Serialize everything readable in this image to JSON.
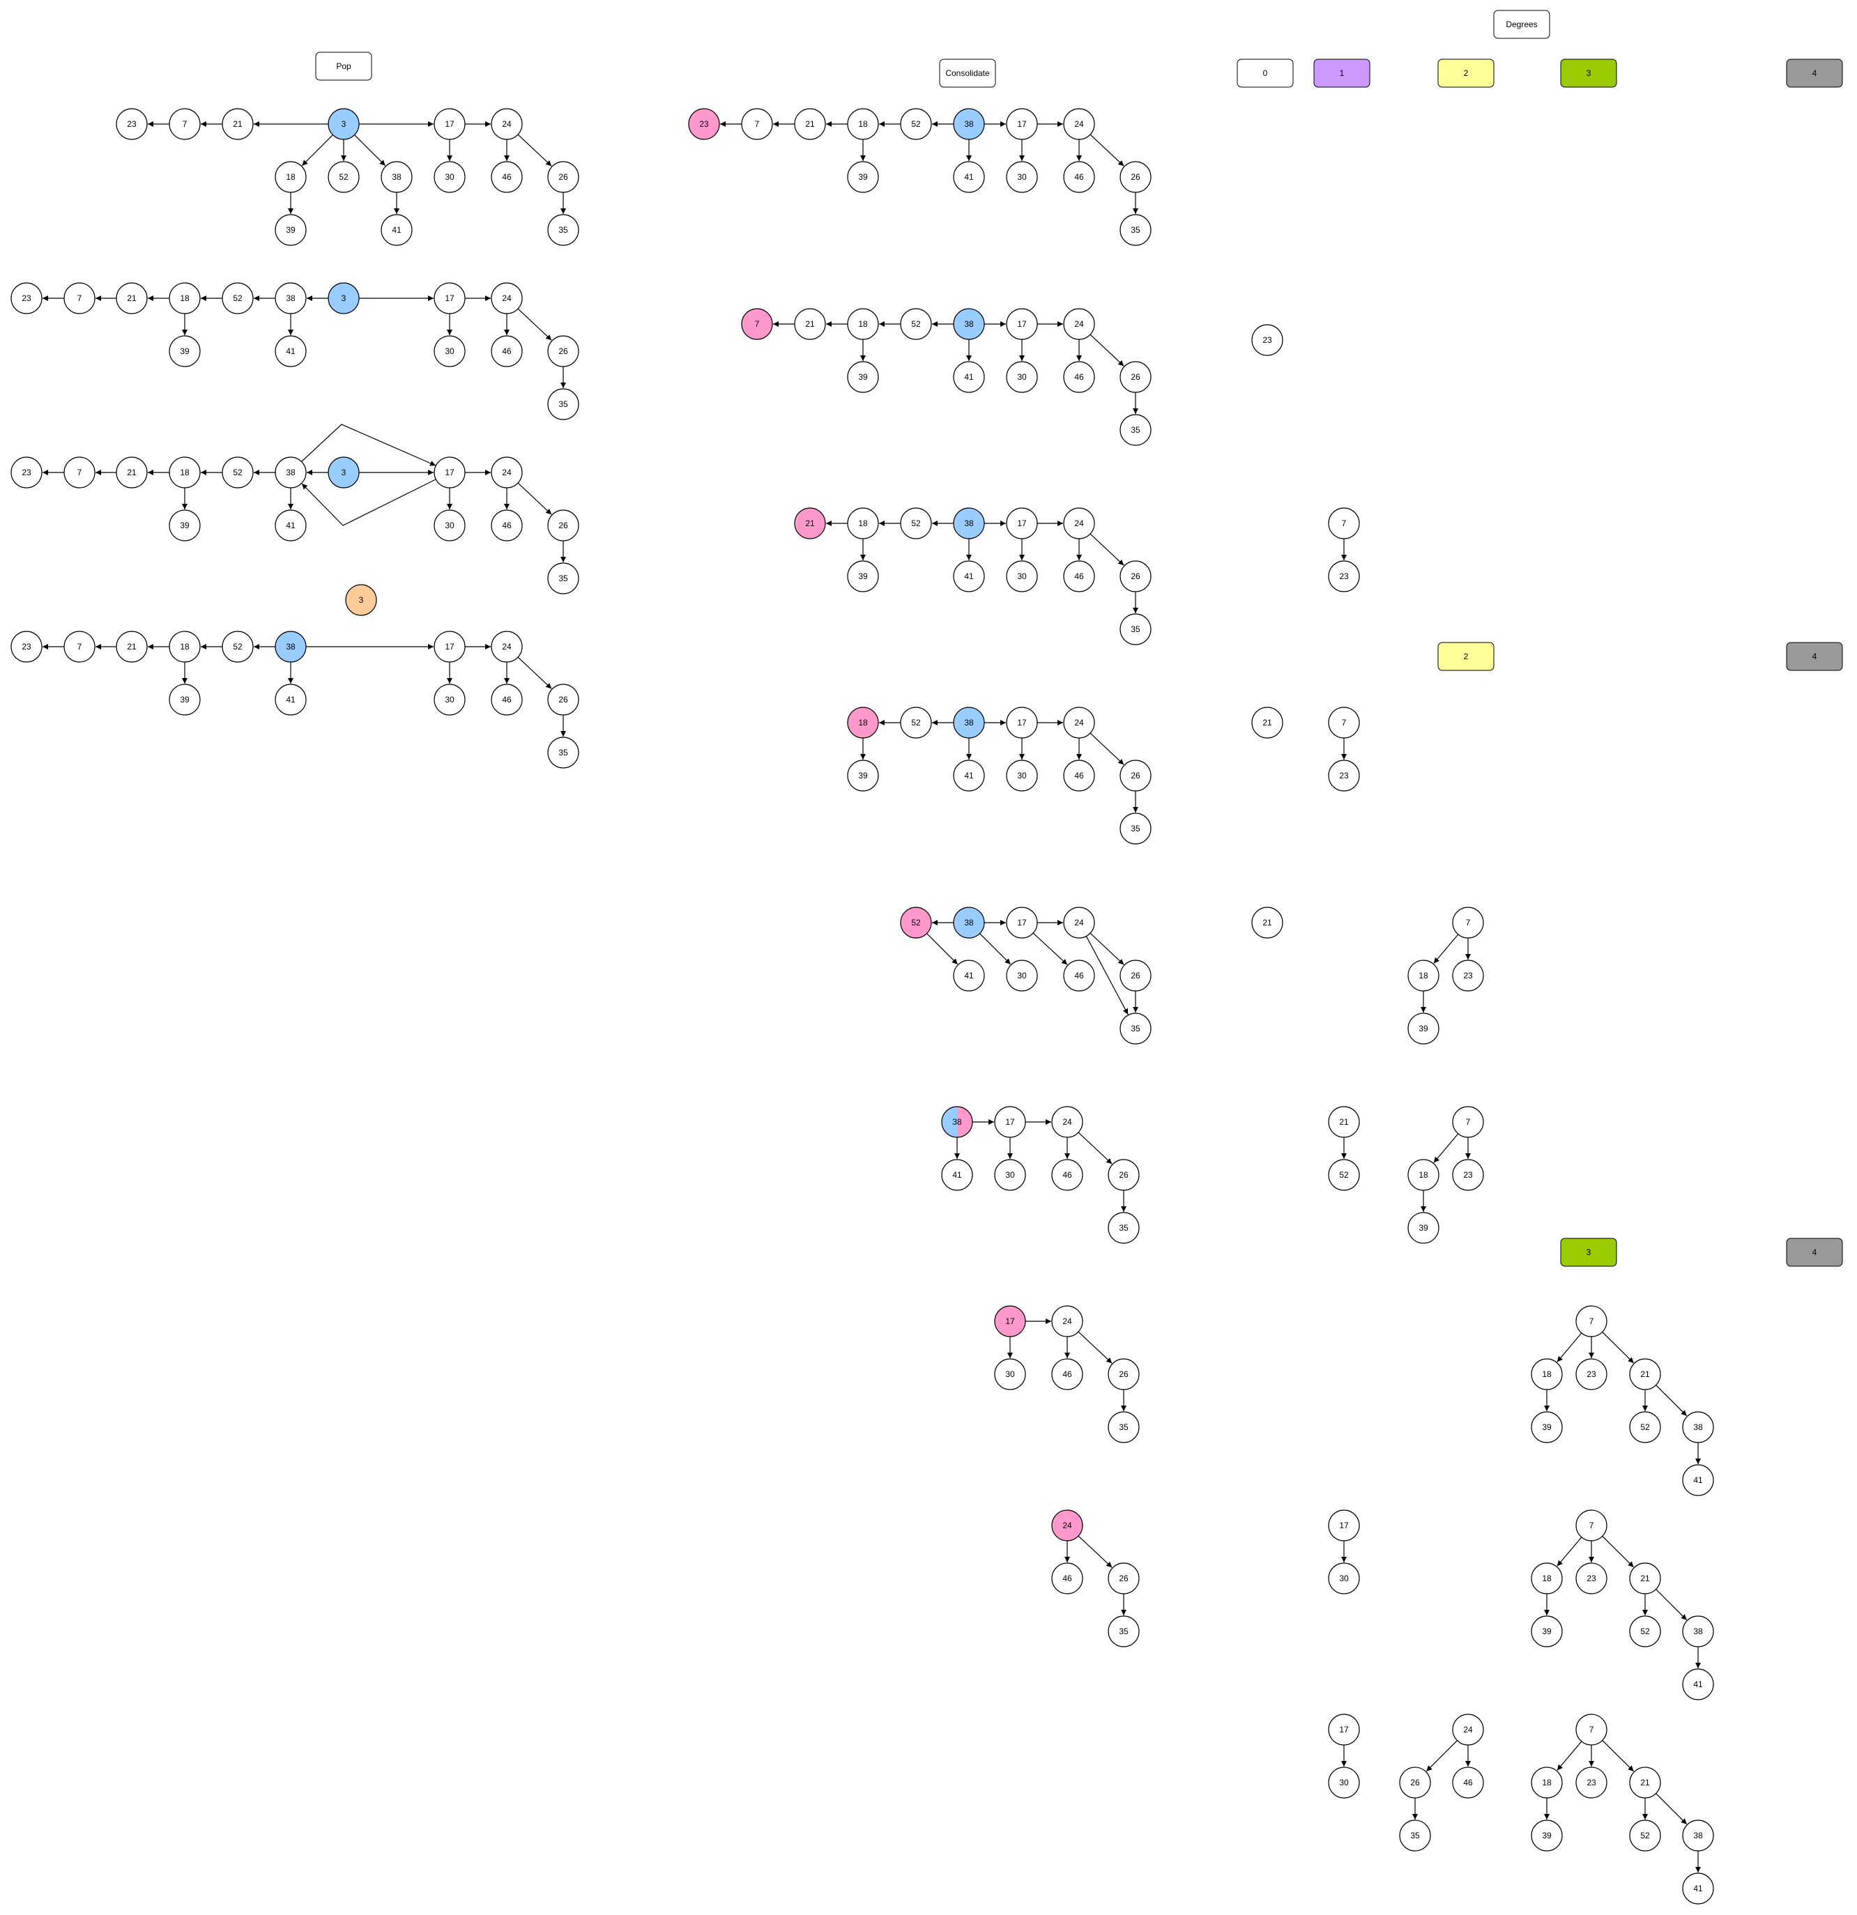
{
  "headings": {
    "pop": "Pop",
    "consolidate": "Consolidate",
    "degrees": "Degrees"
  },
  "degree_labels": [
    "0",
    "1",
    "2",
    "3",
    "4"
  ],
  "colors": {
    "node_fill": "#ffffff",
    "min_pointer": "#99ccff",
    "current_node": "#ff99cc",
    "popped_node": "#ffcc99",
    "merged_node_gradient": [
      "#99ccff",
      "#ff99cc"
    ],
    "degree_0": "#ffffff",
    "degree_1": "#cc99ff",
    "degree_2": "#ffff99",
    "degree_3": "#99cc00",
    "degree_4": "#999999",
    "stroke": "#000000"
  },
  "diagram": {
    "headings": [
      {
        "key": "pop"
      },
      {
        "key": "consolidate"
      },
      {
        "key": "degrees"
      }
    ],
    "degree_boxes": [
      {
        "degree": 0
      },
      {
        "degree": 1
      },
      {
        "degree": 2
      },
      {
        "degree": 3
      },
      {
        "degree": 4
      },
      {
        "degree": 2
      },
      {
        "degree": 4
      },
      {
        "degree": 3
      },
      {
        "degree": 4
      }
    ],
    "panels": [
      {
        "stage": "pop-1",
        "labels": [
          "23",
          "7",
          "21",
          "3",
          "17",
          "24",
          "18",
          "52",
          "38",
          "30",
          "46",
          "26",
          "39",
          "41",
          "35"
        ],
        "highlight": {
          "3": "min_pointer"
        }
      },
      {
        "stage": "pop-2",
        "labels": [
          "23",
          "7",
          "21",
          "18",
          "52",
          "38",
          "3",
          "17",
          "24",
          "39",
          "41",
          "30",
          "46",
          "26",
          "35"
        ],
        "highlight": {
          "3": "min_pointer"
        }
      },
      {
        "stage": "pop-3",
        "labels": [
          "23",
          "7",
          "21",
          "18",
          "52",
          "38",
          "3",
          "17",
          "24",
          "39",
          "41",
          "30",
          "46",
          "26",
          "35"
        ],
        "highlight": {
          "3": "min_pointer"
        }
      },
      {
        "stage": "pop-4",
        "labels": [
          "3",
          "23",
          "7",
          "21",
          "18",
          "52",
          "38",
          "17",
          "24",
          "39",
          "41",
          "30",
          "46",
          "26",
          "35"
        ],
        "highlight": {
          "3": "popped_node",
          "38": "min_pointer"
        }
      },
      {
        "stage": "consolidate-1",
        "labels": [
          "23",
          "7",
          "21",
          "18",
          "52",
          "38",
          "17",
          "24",
          "39",
          "41",
          "30",
          "46",
          "26",
          "35"
        ],
        "highlight": {
          "23": "current_node",
          "38": "min_pointer"
        }
      },
      {
        "stage": "consolidate-2",
        "labels": [
          "7",
          "21",
          "18",
          "52",
          "38",
          "17",
          "24",
          "39",
          "41",
          "30",
          "46",
          "26",
          "35",
          "23"
        ],
        "highlight": {
          "7": "current_node",
          "38": "min_pointer"
        }
      },
      {
        "stage": "consolidate-3",
        "labels": [
          "21",
          "18",
          "52",
          "38",
          "17",
          "24",
          "39",
          "41",
          "30",
          "46",
          "26",
          "35",
          "7",
          "23"
        ],
        "highlight": {
          "21": "current_node",
          "38": "min_pointer"
        }
      },
      {
        "stage": "consolidate-4",
        "labels": [
          "18",
          "52",
          "38",
          "17",
          "24",
          "39",
          "41",
          "30",
          "46",
          "26",
          "35",
          "21",
          "7",
          "23"
        ],
        "highlight": {
          "18": "current_node",
          "38": "min_pointer"
        }
      },
      {
        "stage": "consolidate-5",
        "labels": [
          "52",
          "38",
          "17",
          "24",
          "41",
          "30",
          "46",
          "26",
          "35",
          "21",
          "7",
          "18",
          "23",
          "39"
        ],
        "highlight": {
          "52": "current_node",
          "38": "min_pointer"
        }
      },
      {
        "stage": "consolidate-6",
        "labels": [
          "38",
          "17",
          "24",
          "41",
          "30",
          "46",
          "26",
          "35",
          "21",
          "52",
          "7",
          "18",
          "23",
          "39"
        ],
        "highlight": {
          "38": "merged_node_gradient"
        }
      },
      {
        "stage": "consolidate-7",
        "labels": [
          "17",
          "24",
          "30",
          "46",
          "26",
          "35",
          "7",
          "18",
          "23",
          "21",
          "39",
          "52",
          "38",
          "41"
        ],
        "highlight": {
          "17": "current_node"
        }
      },
      {
        "stage": "consolidate-8",
        "labels": [
          "24",
          "46",
          "26",
          "35",
          "17",
          "30",
          "7",
          "18",
          "23",
          "21",
          "39",
          "52",
          "38",
          "41"
        ],
        "highlight": {
          "24": "current_node"
        }
      },
      {
        "stage": "consolidate-9",
        "labels": [
          "17",
          "30",
          "24",
          "26",
          "46",
          "35",
          "7",
          "18",
          "23",
          "21",
          "39",
          "52",
          "38",
          "41"
        ],
        "highlight": {}
      }
    ]
  }
}
